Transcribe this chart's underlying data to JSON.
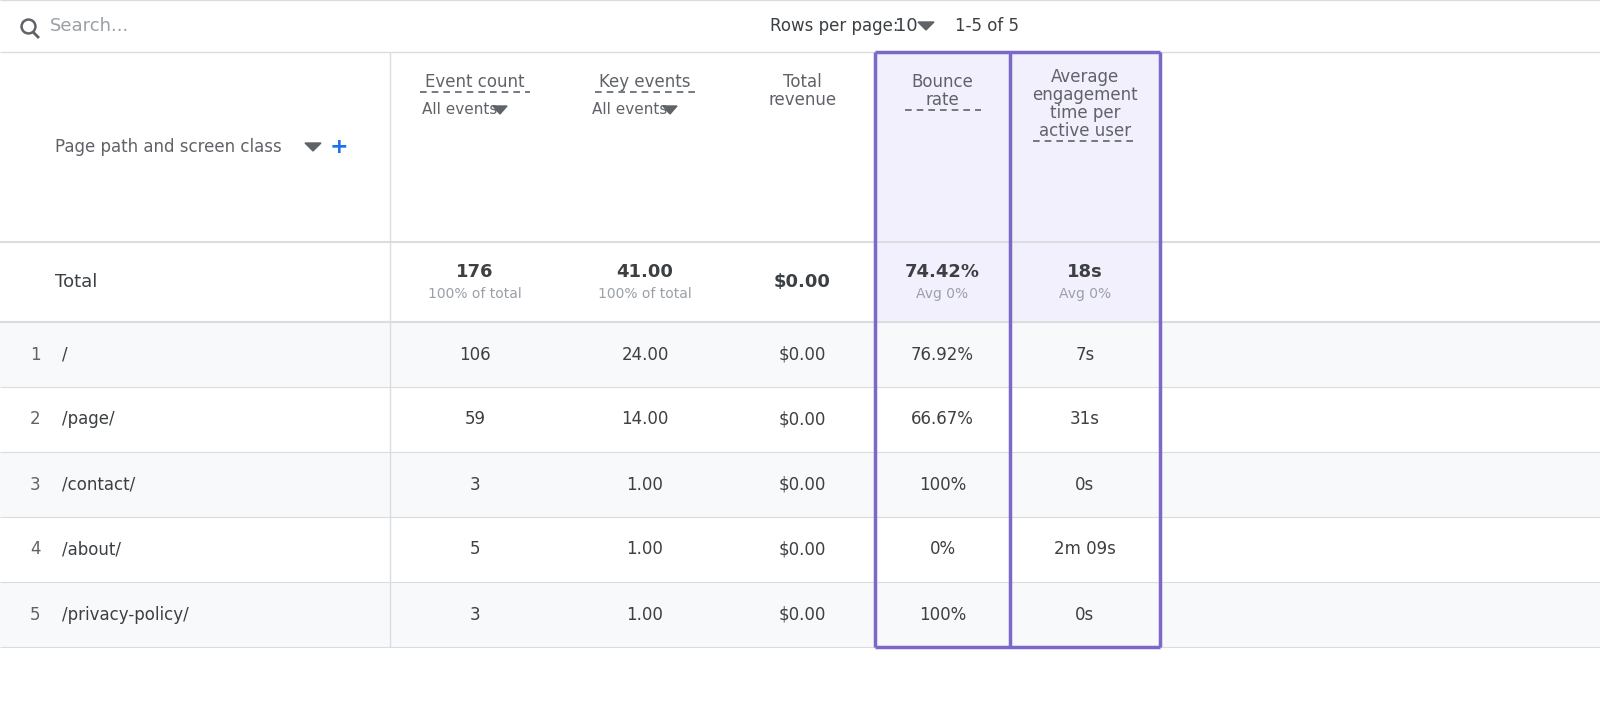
{
  "bg_color": "#ffffff",
  "search_text": "Search...",
  "rows_per_page_text": "Rows per page:",
  "rows_per_page_value": "10",
  "pagination_text": "1-5 of 5",
  "header_col1": "Page path and screen class",
  "header_col2_line1": "Event count",
  "header_col2_line2": "All events",
  "header_col3_line1": "Key events",
  "header_col3_line2": "All events",
  "header_col4_line1": "Total",
  "header_col4_line2": "revenue",
  "header_col5_line1": "Bounce",
  "header_col5_line2": "rate",
  "header_col6_line1": "Average",
  "header_col6_line2": "engagement",
  "header_col6_line3": "time per",
  "header_col6_line4": "active user",
  "total_label": "Total",
  "total_event_count": "176",
  "total_event_count_sub": "100% of total",
  "total_key_events": "41.00",
  "total_key_events_sub": "100% of total",
  "total_revenue": "$0.00",
  "total_bounce_rate": "74.42%",
  "total_bounce_rate_sub": "Avg 0%",
  "total_avg_engagement": "18s",
  "total_avg_engagement_sub": "Avg 0%",
  "rows": [
    {
      "num": "1",
      "page": "/",
      "event_count": "106",
      "key_events": "24.00",
      "total_revenue": "$0.00",
      "bounce_rate": "76.92%",
      "avg_engagement": "7s"
    },
    {
      "num": "2",
      "page": "/page/",
      "event_count": "59",
      "key_events": "14.00",
      "total_revenue": "$0.00",
      "bounce_rate": "66.67%",
      "avg_engagement": "31s"
    },
    {
      "num": "3",
      "page": "/contact/",
      "event_count": "3",
      "key_events": "1.00",
      "total_revenue": "$0.00",
      "bounce_rate": "100%",
      "avg_engagement": "0s"
    },
    {
      "num": "4",
      "page": "/about/",
      "event_count": "5",
      "key_events": "1.00",
      "total_revenue": "$0.00",
      "bounce_rate": "0%",
      "avg_engagement": "2m 09s"
    },
    {
      "num": "5",
      "page": "/privacy-policy/",
      "event_count": "3",
      "key_events": "1.00",
      "total_revenue": "$0.00",
      "bounce_rate": "100%",
      "avg_engagement": "0s"
    }
  ],
  "highlight_color": "#7b68c8",
  "highlight_bg": "#f3f0fd",
  "row_alt_bg": "#f8f9fa",
  "row_bg": "#ffffff",
  "separator_color": "#dadce0",
  "text_dark": "#3c4043",
  "text_medium": "#5f6368",
  "text_light": "#9aa0a6",
  "blue_plus": "#1a73e8"
}
